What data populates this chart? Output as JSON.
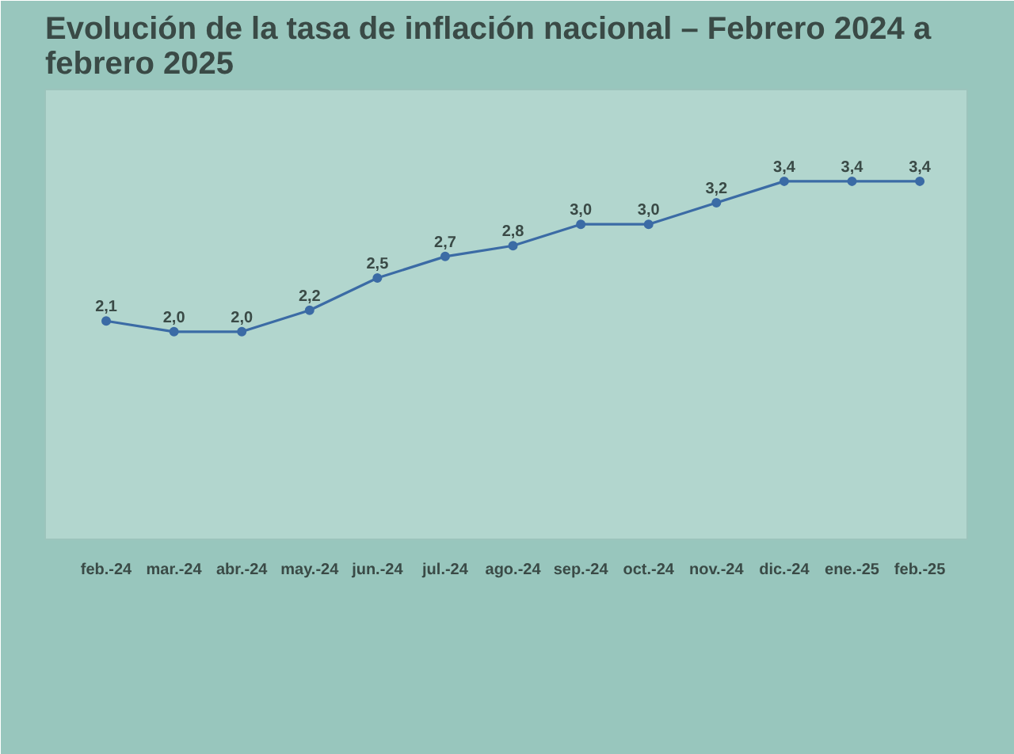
{
  "chart_data": {
    "type": "line",
    "title": "Evolución de la tasa de inflación nacional – Febrero 2024 a febrero 2025",
    "categories": [
      "feb.-24",
      "mar.-24",
      "abr.-24",
      "may.-24",
      "jun.-24",
      "jul.-24",
      "ago.-24",
      "sep.-24",
      "oct.-24",
      "nov.-24",
      "dic.-24",
      "ene.-25",
      "feb.-25"
    ],
    "series": [
      {
        "color": "#3b6ba5",
        "values": [
          2.1,
          2.0,
          2.0,
          2.2,
          2.5,
          2.7,
          2.8,
          3.0,
          3.0,
          3.2,
          3.4,
          3.4,
          3.4
        ],
        "value_labels": [
          "2,1",
          "2,0",
          "2,0",
          "2,2",
          "2,5",
          "2,7",
          "2,8",
          "3,0",
          "3,0",
          "3,2",
          "3,4",
          "3,4",
          "3,4"
        ]
      }
    ],
    "marker": "circle",
    "line_style": "solid",
    "tick_labels": "x",
    "grid": false
  }
}
